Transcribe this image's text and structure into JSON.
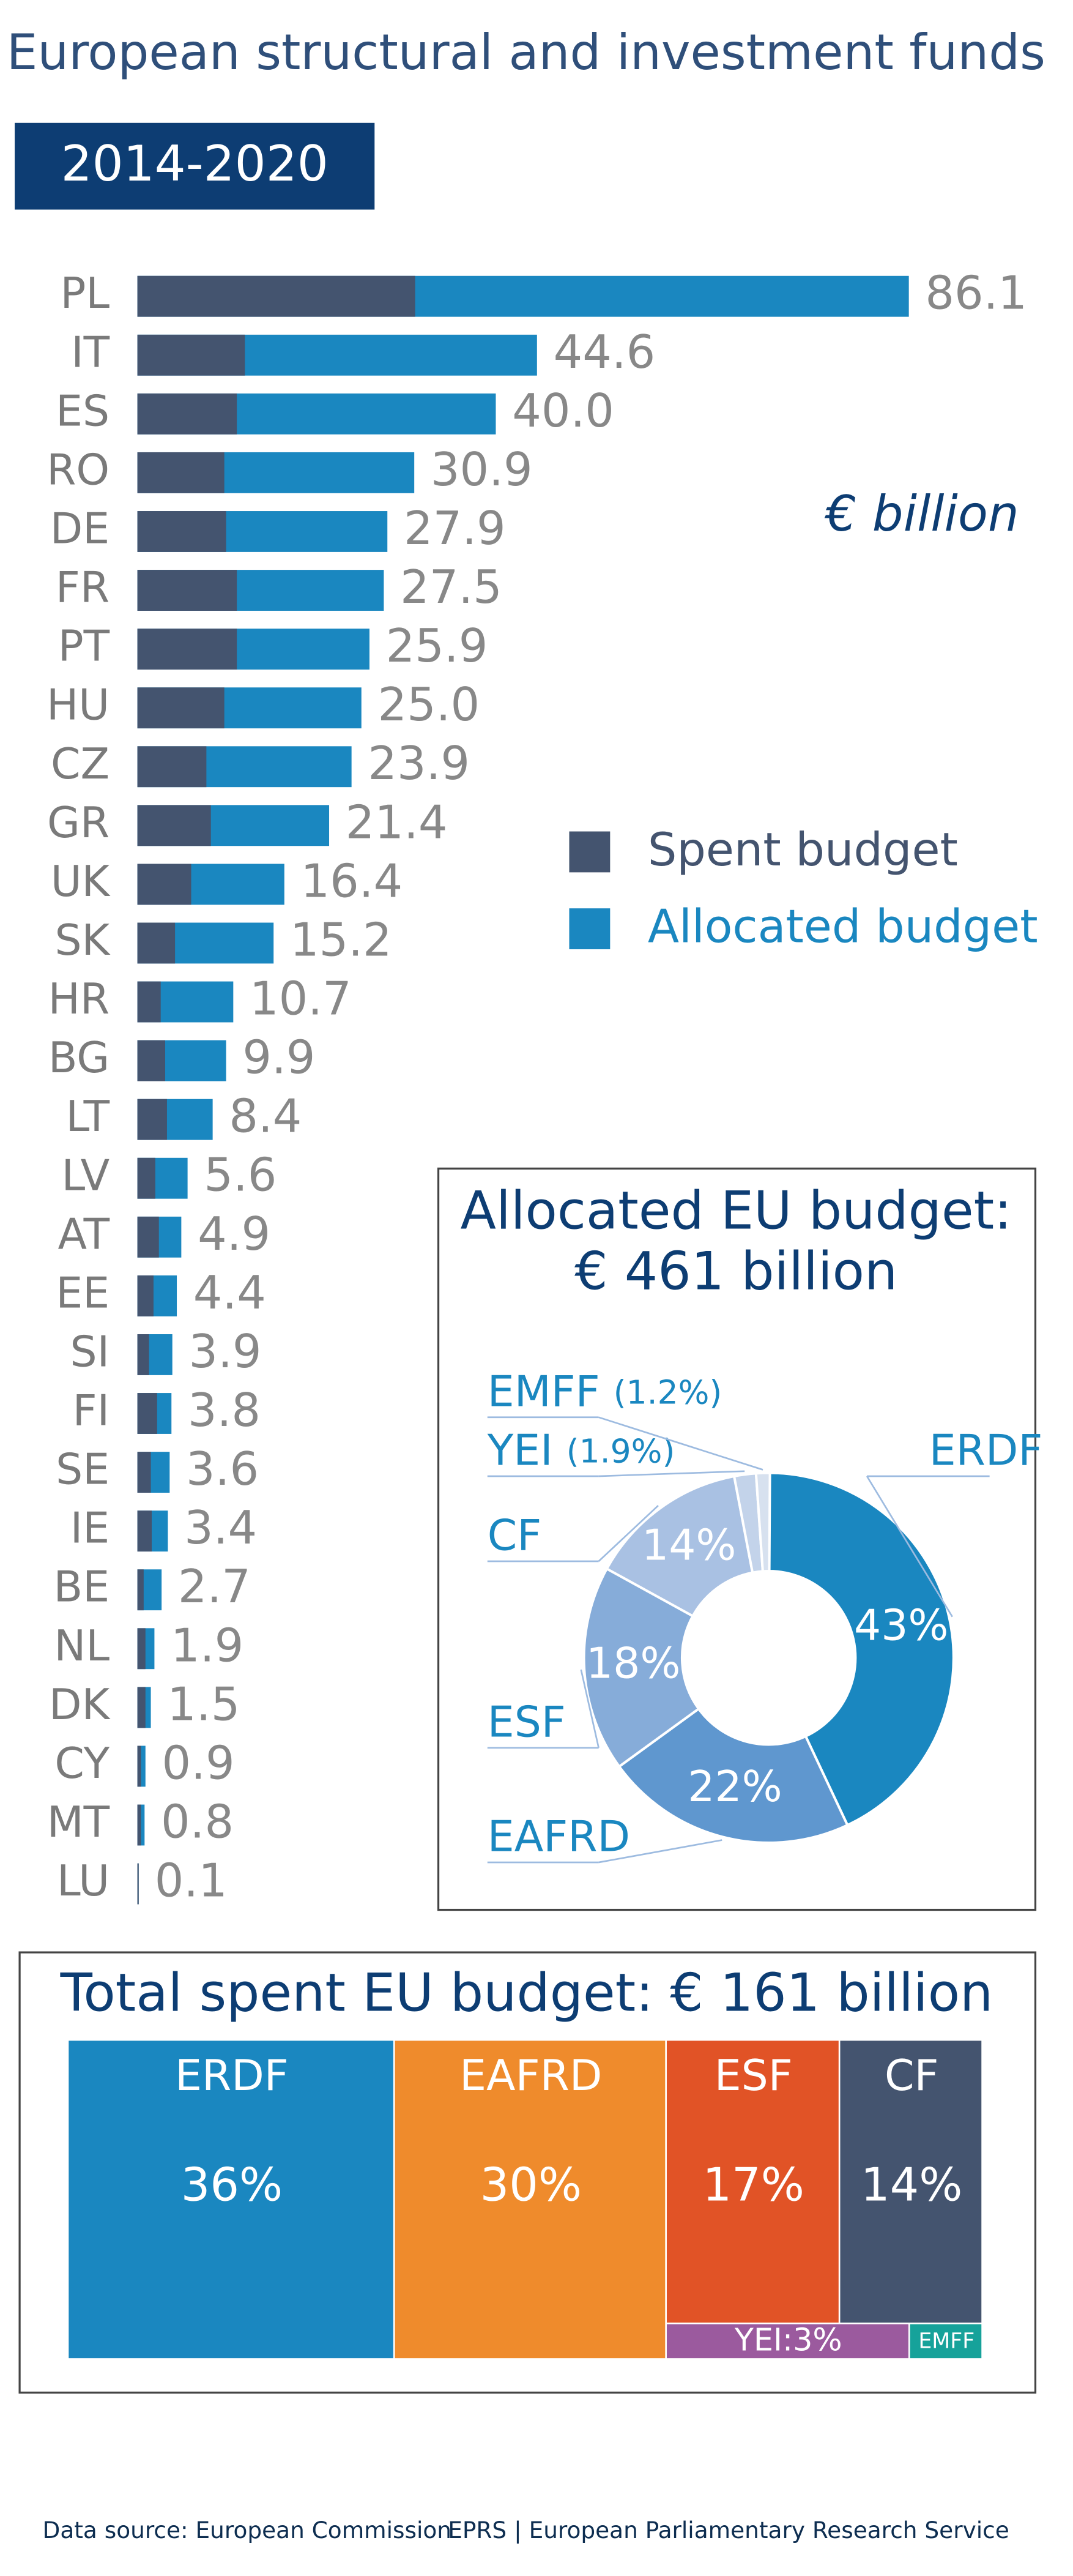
{
  "header": {
    "title": "European structural and investment funds",
    "badge": "2014-2020"
  },
  "chart_data": [
    {
      "type": "hbar",
      "unit_label": "€ billion",
      "categories": [
        "PL",
        "IT",
        "ES",
        "RO",
        "DE",
        "FR",
        "PT",
        "HU",
        "CZ",
        "GR",
        "UK",
        "SK",
        "HR",
        "BG",
        "LT",
        "LV",
        "AT",
        "EE",
        "SI",
        "FI",
        "SE",
        "IE",
        "BE",
        "NL",
        "DK",
        "CY",
        "MT",
        "LU"
      ],
      "series": [
        {
          "name": "Allocated budget",
          "color": "#1a87c0",
          "values": [
            86.1,
            44.6,
            40.0,
            30.9,
            27.9,
            27.5,
            25.9,
            25.0,
            23.9,
            21.4,
            16.4,
            15.2,
            10.7,
            9.9,
            8.4,
            5.6,
            4.9,
            4.4,
            3.9,
            3.8,
            3.6,
            3.4,
            2.7,
            1.9,
            1.5,
            0.9,
            0.8,
            0.1
          ],
          "value_labels": [
            "86.1",
            "44.6",
            "40.0",
            "30.9",
            "27.9",
            "27.5",
            "25.9",
            "25.0",
            "23.9",
            "21.4",
            "16.4",
            "15.2",
            "10.7",
            "9.9",
            "8.4",
            "5.6",
            "4.9",
            "4.4",
            "3.9",
            "3.8",
            "3.6",
            "3.4",
            "2.7",
            "1.9",
            "1.5",
            "0.9",
            "0.8",
            "0.1"
          ]
        },
        {
          "name": "Spent budget",
          "color": "#44546f",
          "values": [
            31.0,
            12.0,
            11.1,
            9.7,
            9.9,
            11.1,
            11.1,
            9.7,
            7.7,
            8.2,
            6.0,
            4.2,
            2.6,
            3.1,
            3.3,
            2.0,
            2.4,
            1.8,
            1.3,
            2.2,
            1.5,
            1.6,
            0.7,
            0.9,
            0.9,
            0.4,
            0.4,
            0.05
          ]
        }
      ],
      "xlim": [
        0,
        90
      ]
    },
    {
      "type": "donut",
      "title": "Allocated EU budget:",
      "subtitle": "€ 461 billion",
      "categories": [
        "ERDF",
        "EAFRD",
        "ESF",
        "CF",
        "YEI",
        "EMFF"
      ],
      "values": [
        43,
        22,
        18,
        14,
        1.9,
        1.2
      ],
      "value_labels": [
        "43%",
        "22%",
        "18%",
        "14%",
        "(1.9%)",
        "(1.2%)"
      ],
      "colors": [
        "#1a87c0",
        "#5f97cf",
        "#86acd9",
        "#a9c1e3",
        "#c3d3ea",
        "#d7e1ef"
      ]
    },
    {
      "type": "treemap",
      "title": "Total spent EU budget: € 161 billion",
      "categories": [
        "ERDF",
        "EAFRD",
        "ESF",
        "CF",
        "YEI",
        "EMFF"
      ],
      "values": [
        36,
        30,
        17,
        14,
        3,
        0.9
      ],
      "value_labels": [
        "36%",
        "30%",
        "17%",
        "14%",
        "3%",
        null
      ],
      "colors": [
        "#1a87c0",
        "#ef8b2c",
        "#e15326",
        "#44546f",
        "#9b5a9e",
        "#16a29a"
      ]
    }
  ],
  "footer": {
    "source": "Data source: European Commission",
    "credit": "EPRS | European Parliamentary Research Service"
  }
}
